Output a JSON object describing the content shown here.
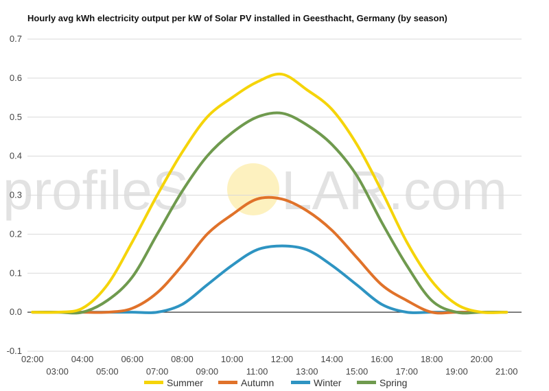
{
  "watermark": {
    "text_before": "profileS",
    "text_after": "LAR.com",
    "sun_color": "#fbe58a"
  },
  "chart_data": {
    "type": "line",
    "title": "Hourly avg kWh electricity output per kW of Solar PV installed in Geesthacht, Germany (by season)",
    "xlabel": "",
    "ylabel": "",
    "x": [
      2,
      3,
      4,
      5,
      6,
      7,
      8,
      9,
      10,
      11,
      12,
      13,
      14,
      15,
      16,
      17,
      18,
      19,
      20,
      21
    ],
    "x_tick_labels": [
      "02:00",
      "03:00",
      "04:00",
      "05:00",
      "06:00",
      "07:00",
      "08:00",
      "09:00",
      "10:00",
      "11:00",
      "12:00",
      "13:00",
      "14:00",
      "15:00",
      "16:00",
      "17:00",
      "18:00",
      "19:00",
      "20:00",
      "21:00"
    ],
    "xlim": [
      1.8,
      21.6
    ],
    "ylim": [
      -0.1,
      0.7
    ],
    "y_ticks": [
      -0.1,
      0.0,
      0.1,
      0.2,
      0.3,
      0.4,
      0.5,
      0.6,
      0.7
    ],
    "y_tick_labels": [
      "-0.1",
      "0.0",
      "0.1",
      "0.2",
      "0.3",
      "0.4",
      "0.5",
      "0.6",
      "0.7"
    ],
    "grid": true,
    "legend_position": "bottom",
    "series": [
      {
        "name": "Summer",
        "color": "#f5d40a",
        "values": [
          0,
          0,
          0.01,
          0.07,
          0.18,
          0.3,
          0.41,
          0.5,
          0.55,
          0.59,
          0.61,
          0.57,
          0.52,
          0.43,
          0.31,
          0.18,
          0.08,
          0.02,
          0,
          0
        ]
      },
      {
        "name": "Autumn",
        "color": "#e0722a",
        "values": [
          0,
          0,
          0,
          0,
          0.01,
          0.05,
          0.12,
          0.2,
          0.25,
          0.29,
          0.29,
          0.26,
          0.21,
          0.14,
          0.07,
          0.03,
          0,
          0,
          0,
          0
        ]
      },
      {
        "name": "Winter",
        "color": "#2e94c2",
        "values": [
          0,
          0,
          0,
          0,
          0,
          0,
          0.02,
          0.07,
          0.12,
          0.16,
          0.17,
          0.16,
          0.12,
          0.07,
          0.02,
          0,
          0,
          0,
          0,
          0
        ]
      },
      {
        "name": "Spring",
        "color": "#6f9a4e",
        "values": [
          0,
          0,
          0,
          0.03,
          0.09,
          0.2,
          0.31,
          0.4,
          0.46,
          0.5,
          0.51,
          0.48,
          0.43,
          0.35,
          0.23,
          0.12,
          0.03,
          0,
          0,
          0
        ]
      }
    ]
  }
}
